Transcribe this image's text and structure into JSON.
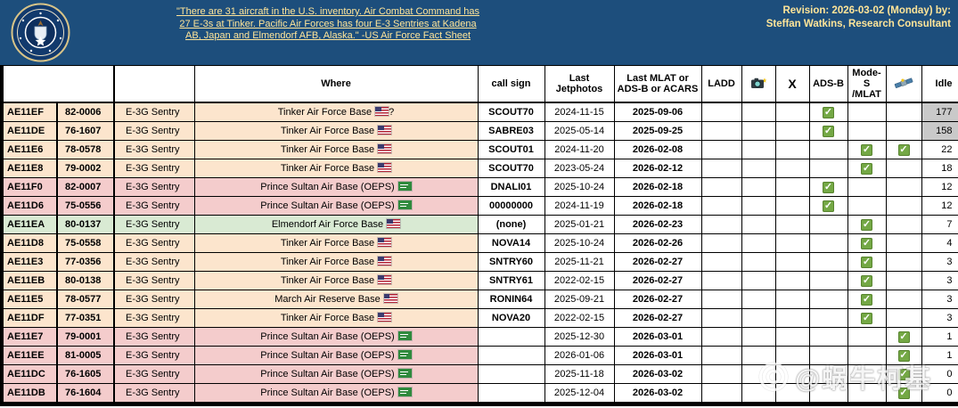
{
  "banner": {
    "quote": "\"There are 31 aircraft in the U.S. inventory. Air Combat Command has 27 E-3s at Tinker. Pacific Air Forces has four E-3 Sentries at Kadena AB, Japan and Elmendorf AFB, Alaska.\" -US Air Force Fact Sheet",
    "revision_line1": "Revision: 2026-03-02 (Monday) by:",
    "revision_line2": "Steffan Watkins, Research Consultant",
    "seal_icon": "usaf-department-seal",
    "colors": {
      "background": "#1d4e7c",
      "text": "#ffe599"
    }
  },
  "table": {
    "headers": {
      "where": "Where",
      "call_sign": "call sign",
      "last_jetphotos": "Last Jetphotos",
      "last_mlat": "Last MLAT or ADS-B or ACARS",
      "ladd": "LADD",
      "camera_icon": "camera-icon",
      "x_label": "X",
      "adsb": "ADS-B",
      "modes_mlat": "Mode-S\n/MLAT",
      "satellite_icon": "satellite-icon",
      "idle": "Idle"
    },
    "colors": {
      "peach": "#fce5cd",
      "pink": "#f4cccc",
      "green": "#d9ead3",
      "idle_gray": "#c9c9c9",
      "check_green": "#74a845"
    },
    "rows": [
      {
        "hex": "AE11EF",
        "tail": "82-0006",
        "type": "E-3G Sentry",
        "where": {
          "text": "Tinker Air Force Base",
          "flag": "us",
          "suffix": "?"
        },
        "call_sign": "SCOUT70",
        "last_jetphotos": "2024-11-15",
        "last_mlat": "2025-09-06",
        "ladd": false,
        "camera": false,
        "x": false,
        "adsb": true,
        "modes_mlat": false,
        "satellite": false,
        "idle": "177",
        "idle_gray": true,
        "color": "peach"
      },
      {
        "hex": "AE11DE",
        "tail": "76-1607",
        "type": "E-3G Sentry",
        "where": {
          "text": "Tinker Air Force Base",
          "flag": "us",
          "suffix": ""
        },
        "call_sign": "SABRE03",
        "last_jetphotos": "2025-05-14",
        "last_mlat": "2025-09-25",
        "ladd": false,
        "camera": false,
        "x": false,
        "adsb": true,
        "modes_mlat": false,
        "satellite": false,
        "idle": "158",
        "idle_gray": true,
        "color": "peach"
      },
      {
        "hex": "AE11E6",
        "tail": "78-0578",
        "type": "E-3G Sentry",
        "where": {
          "text": "Tinker Air Force Base",
          "flag": "us",
          "suffix": ""
        },
        "call_sign": "SCOUT01",
        "last_jetphotos": "2024-11-20",
        "last_mlat": "2026-02-08",
        "ladd": false,
        "camera": false,
        "x": false,
        "adsb": false,
        "modes_mlat": true,
        "satellite": true,
        "idle": "22",
        "idle_gray": false,
        "color": "peach"
      },
      {
        "hex": "AE11E8",
        "tail": "79-0002",
        "type": "E-3G Sentry",
        "where": {
          "text": "Tinker Air Force Base",
          "flag": "us",
          "suffix": ""
        },
        "call_sign": "SCOUT70",
        "last_jetphotos": "2023-05-24",
        "last_mlat": "2026-02-12",
        "ladd": false,
        "camera": false,
        "x": false,
        "adsb": false,
        "modes_mlat": true,
        "satellite": false,
        "idle": "18",
        "idle_gray": false,
        "color": "peach"
      },
      {
        "hex": "AE11F0",
        "tail": "82-0007",
        "type": "E-3G Sentry",
        "where": {
          "text": "Prince Sultan Air Base (OEPS)",
          "flag": "sa",
          "suffix": ""
        },
        "call_sign": "DNALI01",
        "last_jetphotos": "2025-10-24",
        "last_mlat": "2026-02-18",
        "ladd": false,
        "camera": false,
        "x": false,
        "adsb": true,
        "modes_mlat": false,
        "satellite": false,
        "idle": "12",
        "idle_gray": false,
        "color": "pink"
      },
      {
        "hex": "AE11D6",
        "tail": "75-0556",
        "type": "E-3G Sentry",
        "where": {
          "text": "Prince Sultan Air Base (OEPS)",
          "flag": "sa",
          "suffix": ""
        },
        "call_sign": "00000000",
        "last_jetphotos": "2024-11-19",
        "last_mlat": "2026-02-18",
        "ladd": false,
        "camera": false,
        "x": false,
        "adsb": true,
        "modes_mlat": false,
        "satellite": false,
        "idle": "12",
        "idle_gray": false,
        "color": "pink"
      },
      {
        "hex": "AE11EA",
        "tail": "80-0137",
        "type": "E-3G Sentry",
        "where": {
          "text": "Elmendorf Air Force Base",
          "flag": "us",
          "suffix": ""
        },
        "call_sign": "(none)",
        "last_jetphotos": "2025-01-21",
        "last_mlat": "2026-02-23",
        "ladd": false,
        "camera": false,
        "x": false,
        "adsb": false,
        "modes_mlat": true,
        "satellite": false,
        "idle": "7",
        "idle_gray": false,
        "color": "green"
      },
      {
        "hex": "AE11D8",
        "tail": "75-0558",
        "type": "E-3G Sentry",
        "where": {
          "text": "Tinker Air Force Base",
          "flag": "us",
          "suffix": ""
        },
        "call_sign": "NOVA14",
        "last_jetphotos": "2025-10-24",
        "last_mlat": "2026-02-26",
        "ladd": false,
        "camera": false,
        "x": false,
        "adsb": false,
        "modes_mlat": true,
        "satellite": false,
        "idle": "4",
        "idle_gray": false,
        "color": "peach"
      },
      {
        "hex": "AE11E3",
        "tail": "77-0356",
        "type": "E-3G Sentry",
        "where": {
          "text": "Tinker Air Force Base",
          "flag": "us",
          "suffix": ""
        },
        "call_sign": "SNTRY60",
        "last_jetphotos": "2025-11-21",
        "last_mlat": "2026-02-27",
        "ladd": false,
        "camera": false,
        "x": false,
        "adsb": false,
        "modes_mlat": true,
        "satellite": false,
        "idle": "3",
        "idle_gray": false,
        "color": "peach"
      },
      {
        "hex": "AE11EB",
        "tail": "80-0138",
        "type": "E-3G Sentry",
        "where": {
          "text": "Tinker Air Force Base",
          "flag": "us",
          "suffix": ""
        },
        "call_sign": "SNTRY61",
        "last_jetphotos": "2022-02-15",
        "last_mlat": "2026-02-27",
        "ladd": false,
        "camera": false,
        "x": false,
        "adsb": false,
        "modes_mlat": true,
        "satellite": false,
        "idle": "3",
        "idle_gray": false,
        "color": "peach"
      },
      {
        "hex": "AE11E5",
        "tail": "78-0577",
        "type": "E-3G Sentry",
        "where": {
          "text": "March Air Reserve Base",
          "flag": "us",
          "suffix": ""
        },
        "call_sign": "RONIN64",
        "last_jetphotos": "2025-09-21",
        "last_mlat": "2026-02-27",
        "ladd": false,
        "camera": false,
        "x": false,
        "adsb": false,
        "modes_mlat": true,
        "satellite": false,
        "idle": "3",
        "idle_gray": false,
        "color": "peach"
      },
      {
        "hex": "AE11DF",
        "tail": "77-0351",
        "type": "E-3G Sentry",
        "where": {
          "text": "Tinker Air Force Base",
          "flag": "us",
          "suffix": ""
        },
        "call_sign": "NOVA20",
        "last_jetphotos": "2022-02-15",
        "last_mlat": "2026-02-27",
        "ladd": false,
        "camera": false,
        "x": false,
        "adsb": false,
        "modes_mlat": true,
        "satellite": false,
        "idle": "3",
        "idle_gray": false,
        "color": "peach"
      },
      {
        "hex": "AE11E7",
        "tail": "79-0001",
        "type": "E-3G Sentry",
        "where": {
          "text": "Prince Sultan Air Base (OEPS)",
          "flag": "sa",
          "suffix": ""
        },
        "call_sign": "",
        "last_jetphotos": "2025-12-30",
        "last_mlat": "2026-03-01",
        "ladd": false,
        "camera": false,
        "x": false,
        "adsb": false,
        "modes_mlat": false,
        "satellite": true,
        "idle": "1",
        "idle_gray": false,
        "color": "pink"
      },
      {
        "hex": "AE11EE",
        "tail": "81-0005",
        "type": "E-3G Sentry",
        "where": {
          "text": "Prince Sultan Air Base (OEPS)",
          "flag": "sa",
          "suffix": ""
        },
        "call_sign": "",
        "last_jetphotos": "2026-01-06",
        "last_mlat": "2026-03-01",
        "ladd": false,
        "camera": false,
        "x": false,
        "adsb": false,
        "modes_mlat": false,
        "satellite": true,
        "idle": "1",
        "idle_gray": false,
        "color": "pink"
      },
      {
        "hex": "AE11DC",
        "tail": "76-1605",
        "type": "E-3G Sentry",
        "where": {
          "text": "Prince Sultan Air Base (OEPS)",
          "flag": "sa",
          "suffix": ""
        },
        "call_sign": "",
        "last_jetphotos": "2025-11-18",
        "last_mlat": "2026-03-02",
        "ladd": false,
        "camera": false,
        "x": false,
        "adsb": false,
        "modes_mlat": false,
        "satellite": true,
        "idle": "0",
        "idle_gray": false,
        "color": "pink"
      },
      {
        "hex": "AE11DB",
        "tail": "76-1604",
        "type": "E-3G Sentry",
        "where": {
          "text": "Prince Sultan Air Base (OEPS)",
          "flag": "sa",
          "suffix": ""
        },
        "call_sign": "",
        "last_jetphotos": "2025-12-04",
        "last_mlat": "2026-03-02",
        "ladd": false,
        "camera": false,
        "x": false,
        "adsb": false,
        "modes_mlat": false,
        "satellite": true,
        "idle": "0",
        "idle_gray": false,
        "color": "pink"
      }
    ]
  },
  "watermark": {
    "text": "@蜗牛柯基",
    "icon": "weibo-camera-icon"
  }
}
